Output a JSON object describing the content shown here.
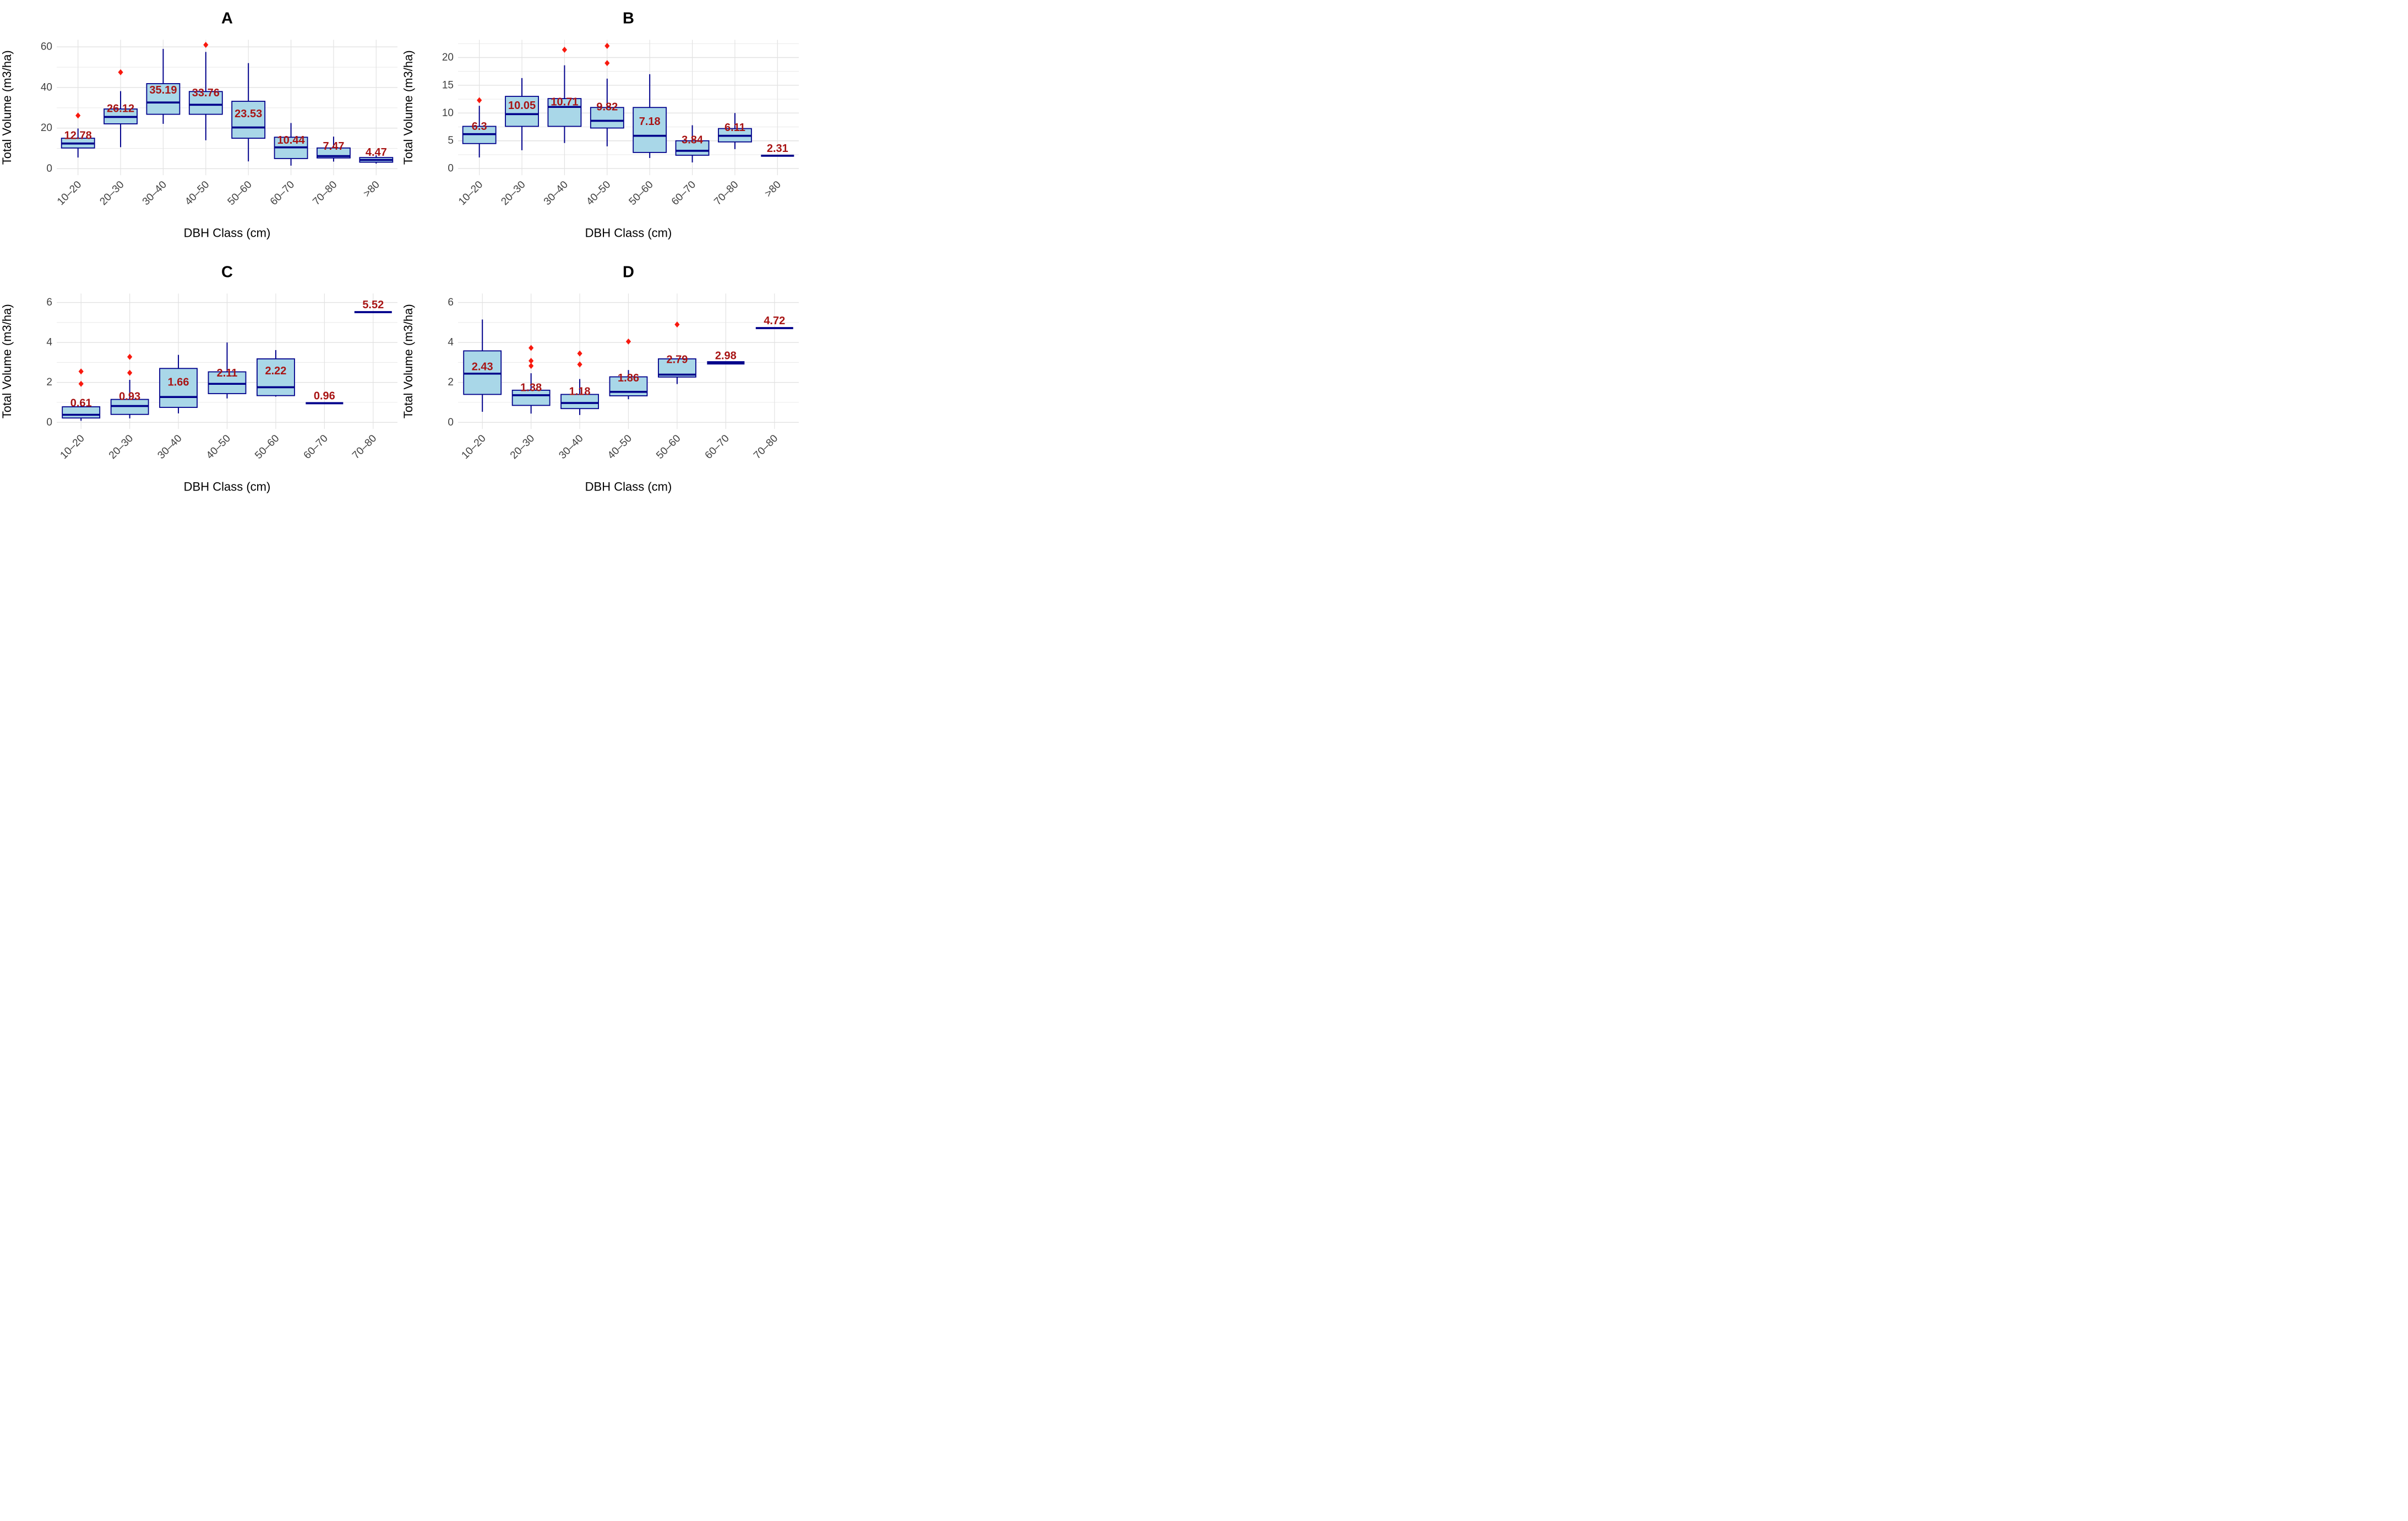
{
  "figure_name": "DBH class boxplot figure",
  "colors": {
    "background": "#ffffff",
    "box_fill": "#a9d7e8",
    "box_border": "#00008b",
    "median": "#00008b",
    "whisker": "#00008b",
    "outlier": "#f8190e",
    "mean_label": "#a81414",
    "grid_major": "#e2e2e2",
    "grid_minor": "#ebebeb",
    "tick_text": "#404040",
    "axis_title": "#000000",
    "panel_title": "#000000"
  },
  "chart_data": [
    {
      "type": "boxplot",
      "panel_label": "A",
      "xlabel": "DBH Class (cm)",
      "ylabel": "Total Volume (m3/ha)",
      "grid": "on",
      "legend": "none",
      "categories": [
        "10–20",
        "20–30",
        "30–40",
        "40–50",
        "50–60",
        "60–70",
        "70–80",
        ">80"
      ],
      "ylim": [
        -3.2,
        63.5
      ],
      "yticks": [
        0,
        20,
        40,
        60
      ],
      "yminor_gridlines": [
        10,
        30,
        50
      ],
      "boxes": [
        {
          "category": "10–20",
          "whisker_low": 5.5,
          "q1": 10.2,
          "median": 12.4,
          "q3": 15.0,
          "whisker_high": 19.8,
          "outliers": [
            26.2
          ],
          "mean_label": "12.78"
        },
        {
          "category": "20–30",
          "whisker_low": 10.6,
          "q1": 22.1,
          "median": 25.5,
          "q3": 29.4,
          "whisker_high": 38.2,
          "outliers": [
            47.5
          ],
          "mean_label": "26.12"
        },
        {
          "category": "30–40",
          "whisker_low": 22.1,
          "q1": 26.8,
          "median": 32.6,
          "q3": 41.9,
          "whisker_high": 59.0,
          "outliers": [],
          "mean_label": "35.19"
        },
        {
          "category": "40–50",
          "whisker_low": 14.0,
          "q1": 26.8,
          "median": 31.5,
          "q3": 38.0,
          "whisker_high": 57.5,
          "outliers": [
            61.0
          ],
          "mean_label": "33.76"
        },
        {
          "category": "50–60",
          "whisker_low": 3.6,
          "q1": 15.0,
          "median": 20.3,
          "q3": 33.2,
          "whisker_high": 52.0,
          "outliers": [],
          "mean_label": "23.53"
        },
        {
          "category": "60–70",
          "whisker_low": 1.5,
          "q1": 5.0,
          "median": 10.5,
          "q3": 15.5,
          "whisker_high": 22.5,
          "outliers": [],
          "mean_label": "10.44"
        },
        {
          "category": "70–80",
          "whisker_low": 3.5,
          "q1": 5.3,
          "median": 6.2,
          "q3": 10.2,
          "whisker_high": 15.8,
          "outliers": [],
          "mean_label": "7.47"
        },
        {
          "category": ">80",
          "whisker_low": 2.5,
          "q1": 3.2,
          "median": 4.3,
          "q3": 5.5,
          "whisker_high": 6.6,
          "outliers": [],
          "mean_label": "4.47"
        }
      ]
    },
    {
      "type": "boxplot",
      "panel_label": "B",
      "xlabel": "DBH Class (cm)",
      "ylabel": "Total Volume (m3/ha)",
      "grid": "on",
      "legend": "none",
      "categories": [
        "10–20",
        "20–30",
        "30–40",
        "40–50",
        "50–60",
        "60–70",
        "70–80",
        ">80"
      ],
      "ylim": [
        -1.2,
        23.2
      ],
      "yticks": [
        0,
        5,
        10,
        15,
        20
      ],
      "yminor_gridlines": [
        2.5,
        7.5,
        12.5,
        17.5,
        22.5
      ],
      "boxes": [
        {
          "category": "10–20",
          "whisker_low": 2.0,
          "q1": 4.5,
          "median": 6.2,
          "q3": 7.6,
          "whisker_high": 11.3,
          "outliers": [
            12.3
          ],
          "mean_label": "6.3"
        },
        {
          "category": "20–30",
          "whisker_low": 3.3,
          "q1": 7.6,
          "median": 9.8,
          "q3": 13.0,
          "whisker_high": 16.3,
          "outliers": [],
          "mean_label": "10.05"
        },
        {
          "category": "30–40",
          "whisker_low": 4.6,
          "q1": 7.6,
          "median": 11.1,
          "q3": 12.6,
          "whisker_high": 18.6,
          "outliers": [
            21.4
          ],
          "mean_label": "10.71"
        },
        {
          "category": "40–50",
          "whisker_low": 4.0,
          "q1": 7.3,
          "median": 8.6,
          "q3": 11.0,
          "whisker_high": 16.2,
          "outliers": [
            19.0,
            22.1
          ],
          "mean_label": "9.82"
        },
        {
          "category": "50–60",
          "whisker_low": 1.9,
          "q1": 2.9,
          "median": 5.9,
          "q3": 11.0,
          "whisker_high": 17.0,
          "outliers": [],
          "mean_label": "7.18"
        },
        {
          "category": "60–70",
          "whisker_low": 1.1,
          "q1": 2.4,
          "median": 3.2,
          "q3": 5.0,
          "whisker_high": 7.8,
          "outliers": [],
          "mean_label": "3.84"
        },
        {
          "category": "70–80",
          "whisker_low": 3.5,
          "q1": 4.8,
          "median": 5.9,
          "q3": 7.2,
          "whisker_high": 10.0,
          "outliers": [],
          "mean_label": "6.11"
        },
        {
          "category": ">80",
          "whisker_low": 2.31,
          "q1": 2.31,
          "median": 2.31,
          "q3": 2.31,
          "whisker_high": 2.31,
          "outliers": [],
          "mean_label": "2.31"
        }
      ]
    },
    {
      "type": "boxplot",
      "panel_label": "C",
      "xlabel": "DBH Class (cm)",
      "ylabel": "Total Volume (m3/ha)",
      "grid": "on",
      "legend": "none",
      "categories": [
        "10–20",
        "20–30",
        "30–40",
        "40–50",
        "50–60",
        "60–70",
        "70–80"
      ],
      "ylim": [
        -0.33,
        6.45
      ],
      "yticks": [
        0,
        2,
        4,
        6
      ],
      "yminor_gridlines": [
        1,
        3,
        5
      ],
      "boxes": [
        {
          "category": "10–20",
          "whisker_low": 0.08,
          "q1": 0.22,
          "median": 0.38,
          "q3": 0.78,
          "whisker_high": 1.02,
          "outliers": [
            1.93,
            2.55
          ],
          "mean_label": "0.61"
        },
        {
          "category": "20–30",
          "whisker_low": 0.2,
          "q1": 0.4,
          "median": 0.82,
          "q3": 1.15,
          "whisker_high": 2.13,
          "outliers": [
            2.48,
            3.28
          ],
          "mean_label": "0.93"
        },
        {
          "category": "30–40",
          "whisker_low": 0.45,
          "q1": 0.75,
          "median": 1.27,
          "q3": 2.7,
          "whisker_high": 3.38,
          "outliers": [],
          "mean_label": "1.66"
        },
        {
          "category": "40–50",
          "whisker_low": 1.2,
          "q1": 1.44,
          "median": 1.93,
          "q3": 2.53,
          "whisker_high": 4.0,
          "outliers": [],
          "mean_label": "2.11"
        },
        {
          "category": "50–60",
          "whisker_low": 1.29,
          "q1": 1.34,
          "median": 1.76,
          "q3": 3.18,
          "whisker_high": 3.62,
          "outliers": [],
          "mean_label": "2.22"
        },
        {
          "category": "60–70",
          "whisker_low": 0.96,
          "q1": 0.96,
          "median": 0.96,
          "q3": 0.96,
          "whisker_high": 0.96,
          "outliers": [],
          "mean_label": "0.96"
        },
        {
          "category": "70–80",
          "whisker_low": 5.52,
          "q1": 5.52,
          "median": 5.52,
          "q3": 5.52,
          "whisker_high": 5.52,
          "outliers": [],
          "mean_label": "5.52"
        }
      ]
    },
    {
      "type": "boxplot",
      "panel_label": "D",
      "xlabel": "DBH Class (cm)",
      "ylabel": "Total Volume (m3/ha)",
      "grid": "on",
      "legend": "none",
      "categories": [
        "10–20",
        "20–30",
        "30–40",
        "40–50",
        "50–60",
        "60–70",
        "70–80"
      ],
      "ylim": [
        -0.33,
        6.45
      ],
      "yticks": [
        0,
        2,
        4,
        6
      ],
      "yminor_gridlines": [
        1,
        3,
        5
      ],
      "boxes": [
        {
          "category": "10–20",
          "whisker_low": 0.53,
          "q1": 1.4,
          "median": 2.44,
          "q3": 3.58,
          "whisker_high": 5.15,
          "outliers": [],
          "mean_label": "2.43"
        },
        {
          "category": "20–30",
          "whisker_low": 0.44,
          "q1": 0.85,
          "median": 1.36,
          "q3": 1.61,
          "whisker_high": 2.46,
          "outliers": [
            2.83,
            3.08,
            3.73
          ],
          "mean_label": "1.38"
        },
        {
          "category": "30–40",
          "whisker_low": 0.37,
          "q1": 0.69,
          "median": 0.97,
          "q3": 1.4,
          "whisker_high": 2.17,
          "outliers": [
            2.9,
            3.45
          ],
          "mean_label": "1.18"
        },
        {
          "category": "40–50",
          "whisker_low": 1.16,
          "q1": 1.33,
          "median": 1.53,
          "q3": 2.28,
          "whisker_high": 2.62,
          "outliers": [
            4.05
          ],
          "mean_label": "1.86"
        },
        {
          "category": "50–60",
          "whisker_low": 1.92,
          "q1": 2.27,
          "median": 2.39,
          "q3": 3.18,
          "whisker_high": 3.18,
          "outliers": [
            4.9
          ],
          "mean_label": "2.79"
        },
        {
          "category": "60–70",
          "whisker_low": 2.98,
          "q1": 2.98,
          "median": 2.98,
          "q3": 2.98,
          "whisker_high": 2.98,
          "outliers": [],
          "mean_label": "2.98",
          "line_width": 6
        },
        {
          "category": "70–80",
          "whisker_low": 4.72,
          "q1": 4.72,
          "median": 4.72,
          "q3": 4.72,
          "whisker_high": 4.72,
          "outliers": [],
          "mean_label": "4.72"
        }
      ]
    }
  ]
}
